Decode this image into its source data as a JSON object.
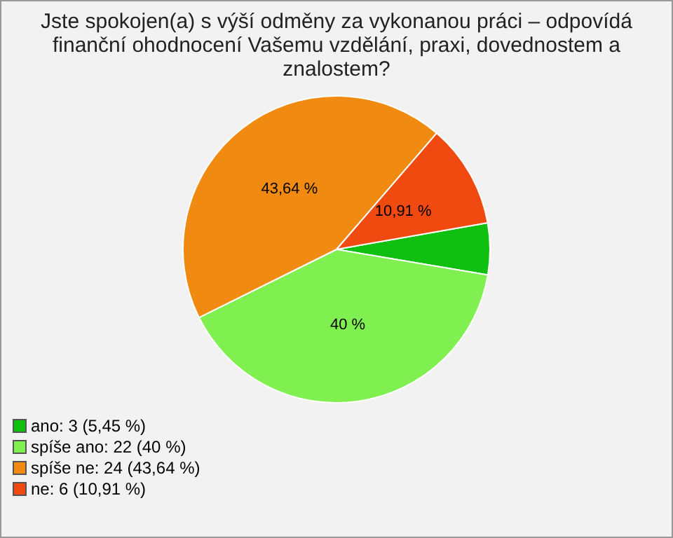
{
  "chart_data": {
    "type": "pie",
    "title": "Jste spokojen(a) s výší odměny za vykonanou práci – odpovídá finanční ohodnocení Vašemu vzdělání, praxi, dovednostem a znalostem?",
    "categories": [
      "ano: 3 (5,45 %)",
      "spíše ano: 22 (40 %)",
      "spíše ne: 24 (43,64 %)",
      "ne: 6 (10,91 %)"
    ],
    "values": [
      5.45,
      40,
      43.64,
      10.91
    ],
    "colors": [
      "#10c010",
      "#80f050",
      "#f08a10",
      "#f04a10"
    ],
    "value_labels": [
      null,
      "40 %",
      "43,64 %",
      "10,91 %"
    ],
    "legend": "bottom left"
  }
}
